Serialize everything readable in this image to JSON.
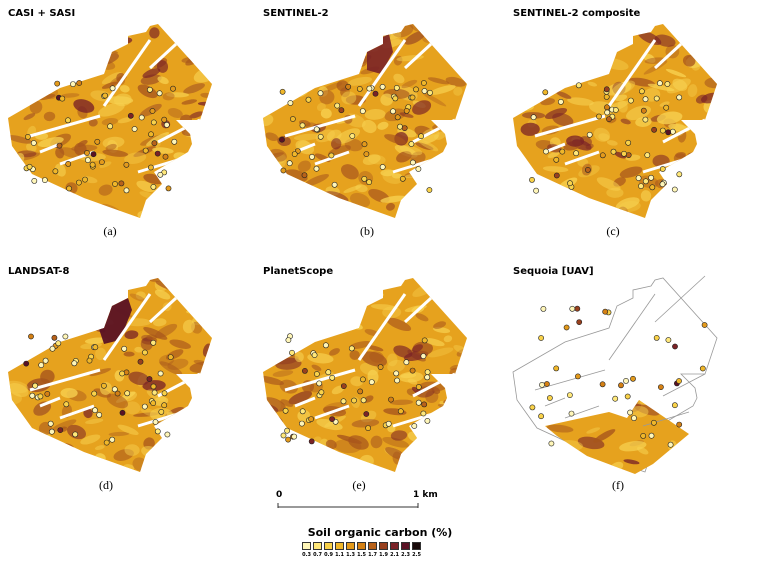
{
  "panels": [
    {
      "title": "CASI + SASI",
      "label": "(a)",
      "variant": "full"
    },
    {
      "title": "SENTINEL-2",
      "label": "(b)",
      "variant": "full"
    },
    {
      "title": "SENTINEL-2 composite",
      "label": "(c)",
      "variant": "full"
    },
    {
      "title": "LANDSAT-8",
      "label": "(d)",
      "variant": "full"
    },
    {
      "title": "PlanetScope",
      "label": "(e)",
      "variant": "full"
    },
    {
      "title": "Sequoia [UAV]",
      "label": "(f)",
      "variant": "partial"
    }
  ],
  "scalebar": {
    "start": "0",
    "end": "1 km"
  },
  "legend": {
    "title": "Soil organic carbon (%)",
    "ticks": [
      "0.3",
      "0.7",
      "0.9",
      "1.1",
      "1.3",
      "1.5",
      "1.7",
      "1.9",
      "2.1",
      "2.3",
      "2.5"
    ],
    "colors": [
      "#fff6b8",
      "#ffe87a",
      "#f9d24a",
      "#f0b72a",
      "#e39a1c",
      "#d48014",
      "#b8621a",
      "#98401e",
      "#7a2226",
      "#5a1224",
      "#1a0a0a"
    ]
  },
  "colors": {
    "field_base": "#e6a21e",
    "field_light": "#f7d150",
    "field_dark": "#a8561c",
    "field_darkest": "#7a2226",
    "outline": "#999999",
    "river": "#ffffff"
  }
}
